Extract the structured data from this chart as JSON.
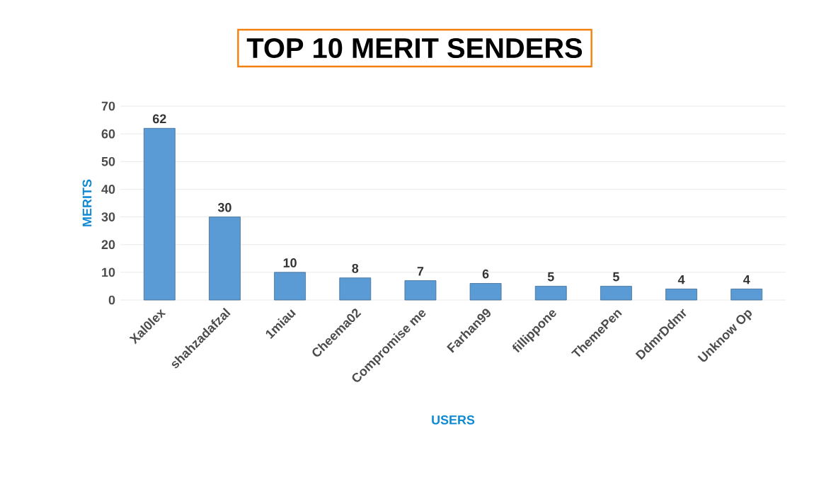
{
  "chart_data": {
    "type": "bar",
    "title": "TOP 10 MERIT SENDERS",
    "xlabel": "USERS",
    "ylabel": "MERITS",
    "categories": [
      "Xal0lex",
      "shahzadafzal",
      "1miau",
      "Cheema02",
      "Compromise me",
      "Farhan99",
      "fillippone",
      "ThemePen",
      "DdmrDdmr",
      "Unknow Op"
    ],
    "values": [
      62,
      30,
      10,
      8,
      7,
      6,
      5,
      5,
      4,
      4
    ],
    "color": "#5b9bd5",
    "ylim": [
      0,
      70
    ],
    "yticks": [
      0,
      10,
      20,
      30,
      40,
      50,
      60,
      70
    ],
    "grid": "y",
    "data_labels": true
  }
}
